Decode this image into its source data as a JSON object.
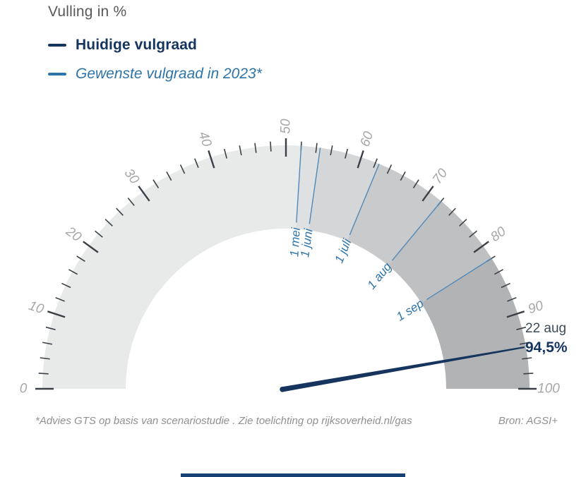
{
  "title": "Vulling in %",
  "legend": {
    "items": [
      {
        "label": "Huidige vulgraad",
        "color": "#16355e"
      },
      {
        "label": "Gewenste vulgraad in 2023*",
        "color": "#2e74a8"
      }
    ]
  },
  "annotation": {
    "date": "22 aug",
    "value": "94,5%"
  },
  "footer": {
    "note": "*Advies GTS op basis van scenariostudie . Zie toelichting op rijksoverheid.nl/gas",
    "source": "Bron: AGSI+"
  },
  "chart_data": {
    "type": "gauge",
    "title": "Vulling in %",
    "unit": "%",
    "min": 0,
    "max": 100,
    "minor_tick_step": 2,
    "major_tick_step": 10,
    "axis_labels": [
      0,
      10,
      20,
      30,
      40,
      50,
      60,
      70,
      80,
      90,
      100
    ],
    "current": {
      "label": "22 aug",
      "value": 94.5,
      "display": "94,5%"
    },
    "milestones": [
      {
        "label": "1 mei",
        "value": 52
      },
      {
        "label": "1 juni",
        "value": 54.5
      },
      {
        "label": "1 juli",
        "value": 62.5
      },
      {
        "label": "1 aug",
        "value": 72
      },
      {
        "label": "1 sep",
        "value": 82
      }
    ],
    "bands": [
      {
        "from": 0,
        "to": 52,
        "color": "#e8e9e9"
      },
      {
        "from": 52,
        "to": 54.5,
        "color": "#dfe0e1"
      },
      {
        "from": 54.5,
        "to": 62.5,
        "color": "#d5d6d7"
      },
      {
        "from": 62.5,
        "to": 72,
        "color": "#c9cacb"
      },
      {
        "from": 72,
        "to": 82,
        "color": "#bec0c1"
      },
      {
        "from": 82,
        "to": 100,
        "color": "#b1b3b5"
      }
    ],
    "colors": {
      "tick": "#3b4046",
      "axis_label": "#a6a7a9",
      "milestone_line": "#5089ba",
      "milestone_label": "#2e74a8",
      "needle": "#16355e",
      "brand_bar": "#154273"
    }
  }
}
